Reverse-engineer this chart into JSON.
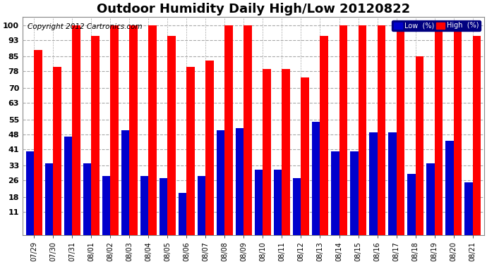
{
  "title": "Outdoor Humidity Daily High/Low 20120822",
  "copyright": "Copyright 2012 Cartronics.com",
  "dates": [
    "07/29",
    "07/30",
    "07/31",
    "08/01",
    "08/02",
    "08/03",
    "08/04",
    "08/05",
    "08/06",
    "08/07",
    "08/08",
    "08/09",
    "08/10",
    "08/11",
    "08/12",
    "08/13",
    "08/14",
    "08/15",
    "08/16",
    "08/17",
    "08/18",
    "08/19",
    "08/20",
    "08/21"
  ],
  "high": [
    88,
    80,
    100,
    95,
    100,
    100,
    100,
    95,
    80,
    83,
    100,
    100,
    79,
    79,
    75,
    95,
    100,
    100,
    100,
    100,
    85,
    100,
    100,
    95
  ],
  "low": [
    40,
    34,
    47,
    34,
    28,
    50,
    28,
    27,
    20,
    28,
    50,
    51,
    31,
    31,
    27,
    54,
    40,
    40,
    49,
    49,
    29,
    34,
    45,
    25
  ],
  "ylim": [
    0,
    104
  ],
  "yticks": [
    11,
    18,
    26,
    33,
    41,
    48,
    55,
    63,
    70,
    78,
    85,
    93,
    100
  ],
  "bar_color_high": "#ff0000",
  "bar_color_low": "#0000cc",
  "bg_color": "#ffffff",
  "grid_color": "#aaaaaa",
  "plot_bg_color": "#ffffff",
  "legend_low_label": "Low  (%)",
  "legend_high_label": "High  (%)",
  "title_fontsize": 13,
  "copyright_fontsize": 7.5
}
